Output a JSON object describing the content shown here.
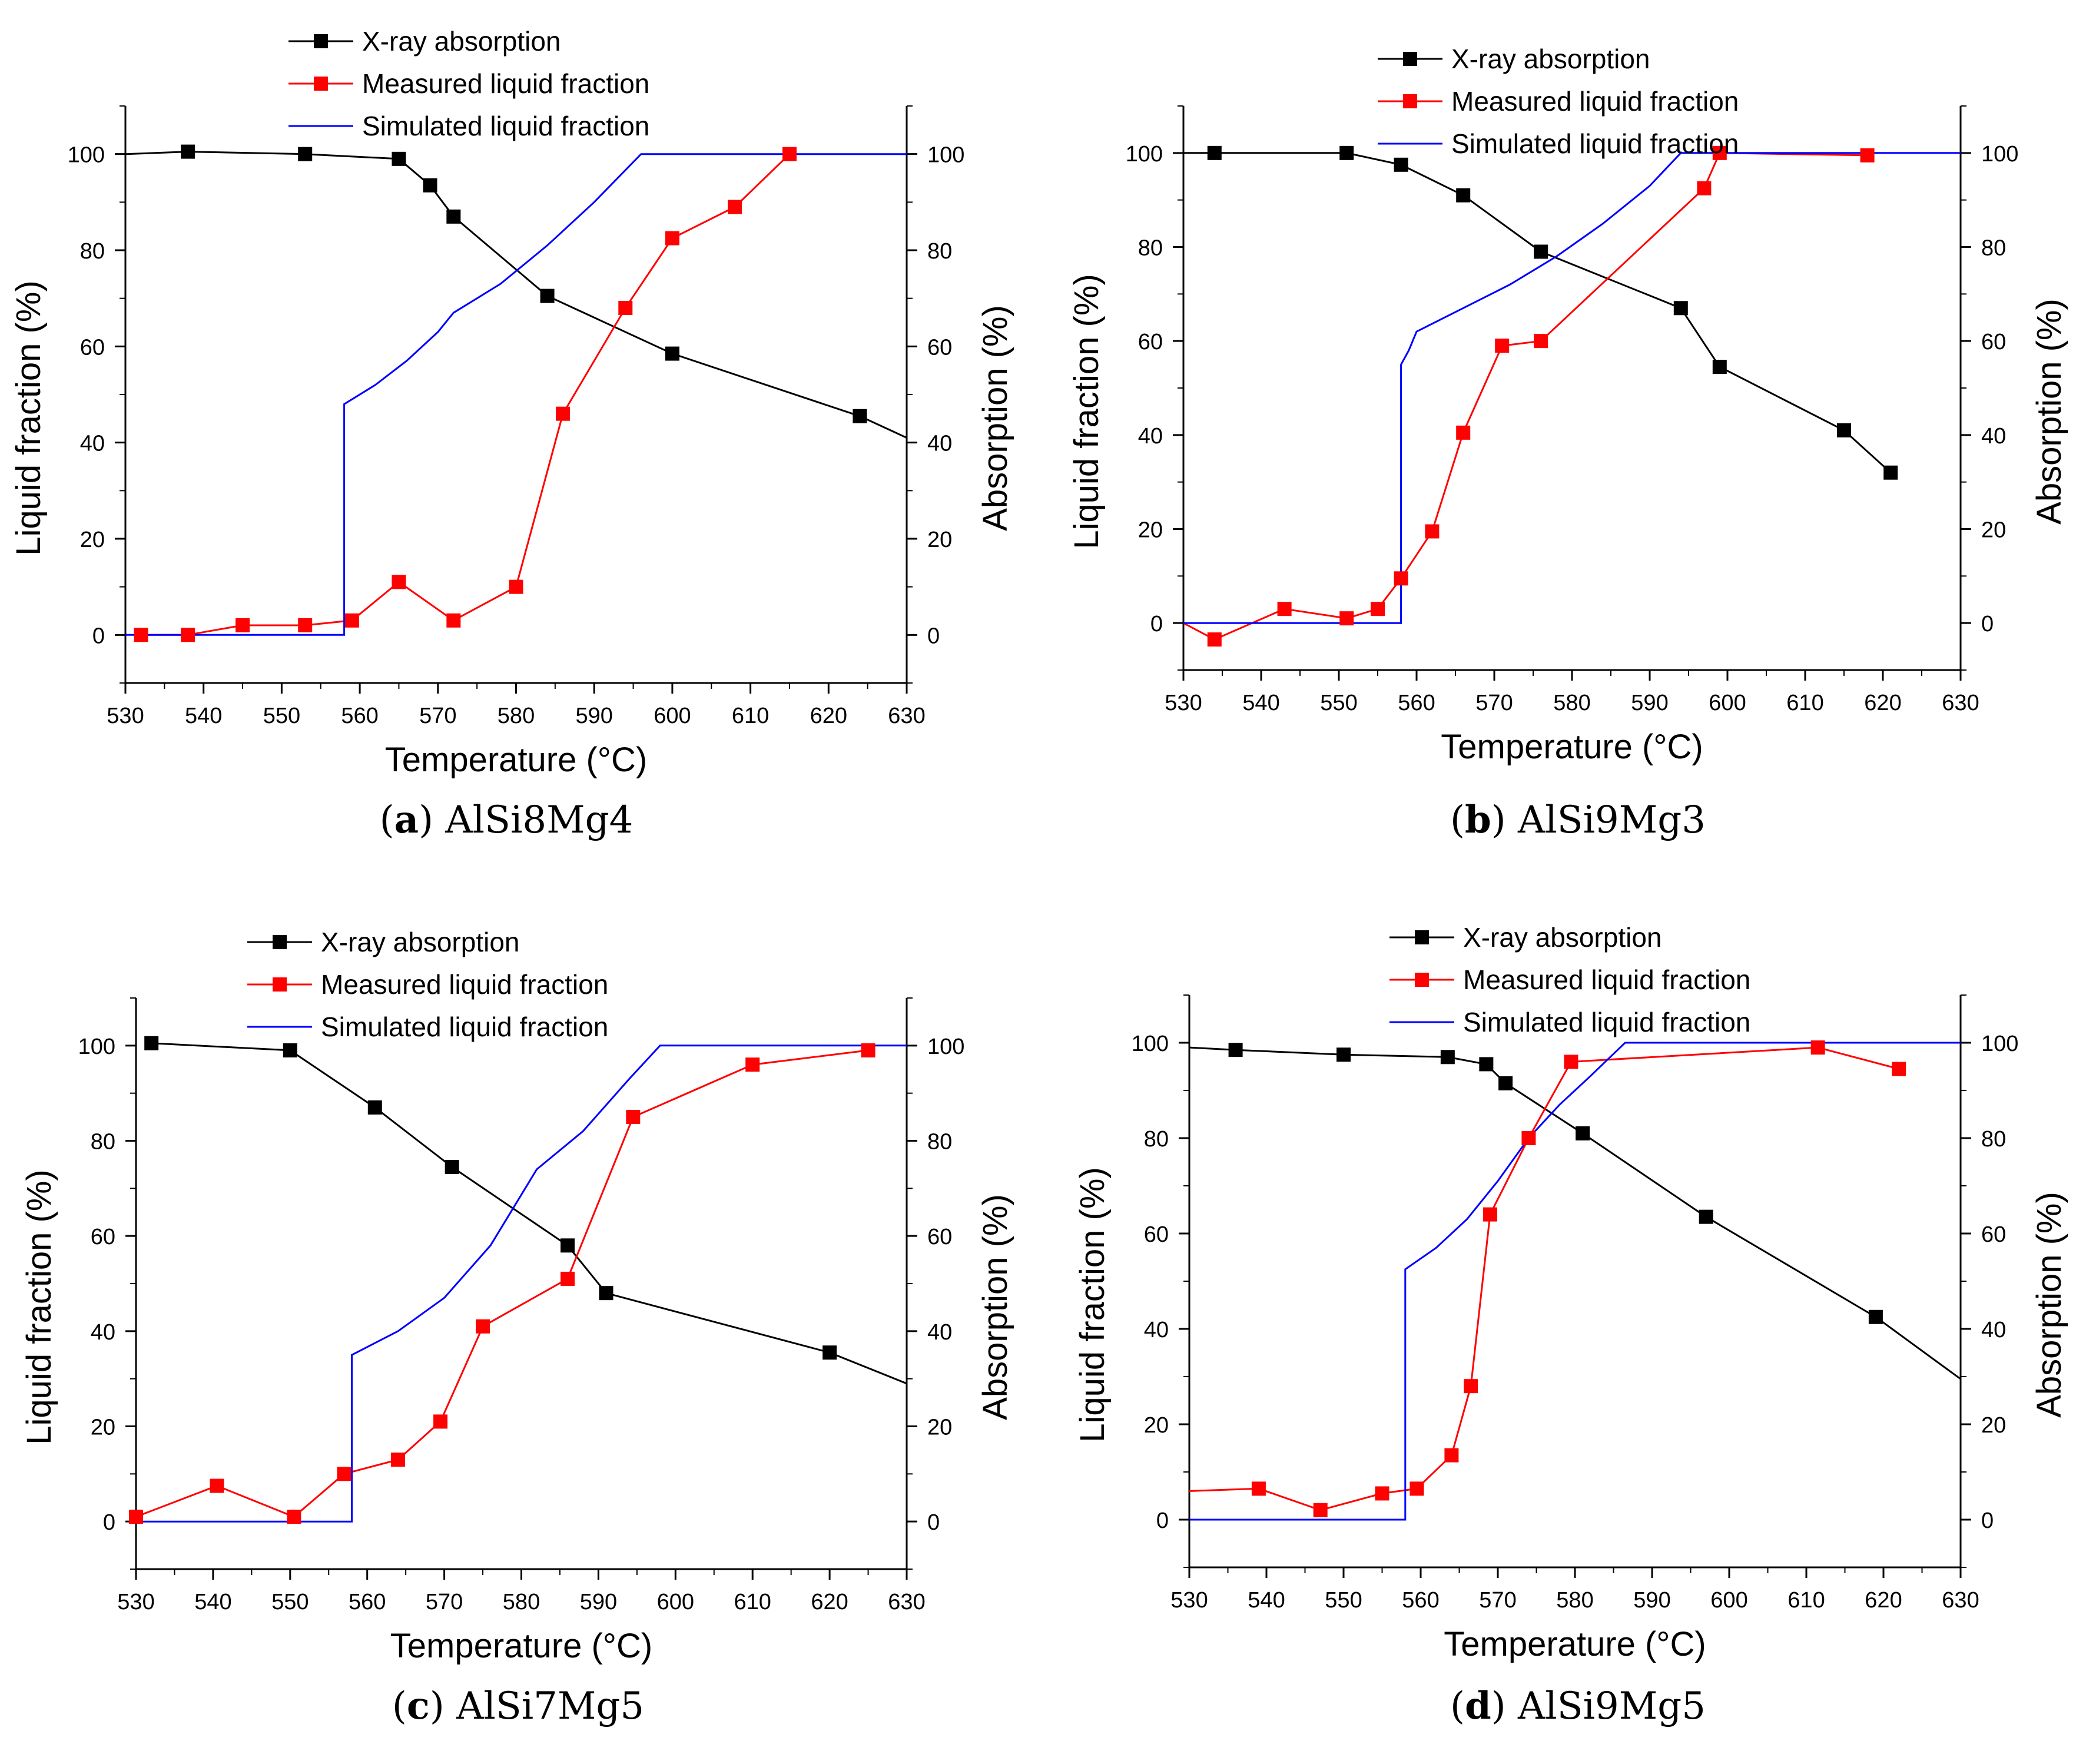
{
  "figure": {
    "captions": [
      {
        "letter": "a",
        "open": "(",
        "close": ")",
        "alloy": "AlSi8Mg4"
      },
      {
        "letter": "b",
        "open": "(",
        "close": ")",
        "alloy": "AlSi9Mg3"
      },
      {
        "letter": "c",
        "open": "(",
        "close": ")",
        "alloy": "AlSi7Mg5"
      },
      {
        "letter": "d",
        "open": "(",
        "close": ")",
        "alloy": "AlSi9Mg5"
      }
    ]
  },
  "colors": {
    "xray": "#000000",
    "measured": "#ff0000",
    "simulated": "#0000ff",
    "axis": "#000000"
  },
  "chart_data": [
    {
      "type": "line",
      "title": "AlSi8Mg4",
      "xlabel": "Temperature (°C)",
      "ylabel": "Liquid fraction (%)",
      "y2label": "Absorption (%)",
      "xlim": [
        530,
        630
      ],
      "ylim": [
        -10,
        110
      ],
      "xticks": [
        530,
        540,
        550,
        560,
        570,
        580,
        590,
        600,
        610,
        620,
        630
      ],
      "yticks": [
        0,
        20,
        40,
        60,
        80,
        100
      ],
      "legend": [
        "X-ray absorption",
        "Measured liquid fraction",
        "Simulated liquid fraction"
      ],
      "series": [
        {
          "name": "X-ray absorption",
          "axis": "right",
          "markers": true,
          "x": [
            530,
            538,
            553,
            565,
            569,
            572,
            584,
            600,
            624,
            630
          ],
          "y": [
            100,
            100.5,
            100,
            99,
            93.5,
            87,
            70.5,
            58.5,
            45.5,
            41
          ],
          "marker_x": [
            538,
            553,
            565,
            569,
            572,
            584,
            600,
            624
          ],
          "marker_y": [
            100.5,
            100,
            99,
            93.5,
            87,
            70.5,
            58.5,
            45.5
          ]
        },
        {
          "name": "Measured liquid fraction",
          "axis": "left",
          "markers": true,
          "x": [
            532,
            538,
            545,
            553,
            559,
            565,
            572,
            580,
            586,
            594,
            600,
            608,
            615
          ],
          "y": [
            0,
            0,
            2,
            2,
            3,
            11,
            3,
            10,
            46,
            68,
            82.5,
            89,
            100
          ]
        },
        {
          "name": "Simulated liquid fraction",
          "axis": "left",
          "markers": false,
          "x": [
            530,
            558,
            558,
            562,
            566,
            570,
            572,
            578,
            584,
            590,
            596,
            630
          ],
          "y": [
            0,
            0,
            48,
            52,
            57,
            63,
            67,
            73,
            81,
            90,
            100,
            100
          ]
        }
      ]
    },
    {
      "type": "line",
      "title": "AlSi9Mg3",
      "xlabel": "Temperature (°C)",
      "ylabel": "Liquid fraction (%)",
      "y2label": "Absorption (%)",
      "xlim": [
        530,
        630
      ],
      "ylim": [
        -10,
        110
      ],
      "xticks": [
        530,
        540,
        550,
        560,
        570,
        580,
        590,
        600,
        610,
        620,
        630
      ],
      "yticks": [
        0,
        20,
        40,
        60,
        80,
        100
      ],
      "legend": [
        "X-ray absorption",
        "Measured liquid fraction",
        "Simulated liquid fraction"
      ],
      "series": [
        {
          "name": "X-ray absorption",
          "axis": "right",
          "markers": true,
          "x": [
            530,
            534,
            551,
            558,
            566,
            576,
            594,
            599,
            615,
            621
          ],
          "y": [
            100,
            100,
            100,
            97.5,
            91,
            79,
            67,
            54.5,
            41,
            32
          ],
          "marker_x": [
            534,
            551,
            558,
            566,
            576,
            594,
            599,
            615,
            621
          ],
          "marker_y": [
            100,
            100,
            97.5,
            91,
            79,
            67,
            54.5,
            41,
            32
          ]
        },
        {
          "name": "Measured liquid fraction",
          "axis": "left",
          "markers": true,
          "x": [
            530,
            534,
            543,
            551,
            555,
            558,
            562,
            566,
            571,
            576,
            597,
            599,
            618
          ],
          "y": [
            0,
            -3.5,
            3,
            1,
            3,
            9.5,
            19.5,
            40.5,
            59,
            60,
            92.5,
            100,
            99.5
          ],
          "marker_x": [
            534,
            543,
            551,
            555,
            558,
            562,
            566,
            571,
            576,
            597,
            599,
            618
          ],
          "marker_y": [
            -3.5,
            3,
            1,
            3,
            9.5,
            19.5,
            40.5,
            59,
            60,
            92.5,
            100,
            99.5
          ]
        },
        {
          "name": "Simulated liquid fraction",
          "axis": "left",
          "markers": false,
          "x": [
            530,
            558,
            558,
            559,
            560,
            566,
            572,
            578,
            584,
            590,
            594,
            630
          ],
          "y": [
            0,
            0,
            55,
            58,
            62,
            67,
            72,
            78,
            85,
            93,
            100,
            100
          ]
        }
      ]
    },
    {
      "type": "line",
      "title": "AlSi7Mg5",
      "xlabel": "Temperature (°C)",
      "ylabel": "Liquid fraction (%)",
      "y2label": "Absorption (%)",
      "xlim": [
        530,
        630
      ],
      "ylim": [
        -10,
        110
      ],
      "xticks": [
        530,
        540,
        550,
        560,
        570,
        580,
        590,
        600,
        610,
        620,
        630
      ],
      "yticks": [
        0,
        20,
        40,
        60,
        80,
        100
      ],
      "legend": [
        "X-ray absorption",
        "Measured liquid fraction",
        "Simulated liquid fraction"
      ],
      "series": [
        {
          "name": "X-ray absorption",
          "axis": "right",
          "markers": true,
          "x": [
            532,
            550,
            561,
            571,
            586,
            591,
            620,
            630
          ],
          "y": [
            100.5,
            99,
            87,
            74.5,
            58,
            48,
            35.5,
            29
          ],
          "marker_x": [
            532,
            550,
            561,
            571,
            586,
            591,
            620
          ],
          "marker_y": [
            100.5,
            99,
            87,
            74.5,
            58,
            48,
            35.5
          ]
        },
        {
          "name": "Measured liquid fraction",
          "axis": "left",
          "markers": true,
          "x": [
            530,
            540.5,
            550.5,
            557,
            564,
            569.5,
            575,
            586,
            594.5,
            610,
            625
          ],
          "y": [
            1,
            7.5,
            1,
            10,
            13,
            21,
            41,
            51,
            85,
            96,
            99
          ]
        },
        {
          "name": "Simulated liquid fraction",
          "axis": "left",
          "markers": false,
          "x": [
            530,
            558,
            558,
            564,
            570,
            576,
            582,
            588,
            594,
            598,
            630
          ],
          "y": [
            0,
            0,
            35,
            40,
            47,
            58,
            74,
            82,
            93,
            100,
            100
          ]
        }
      ]
    },
    {
      "type": "line",
      "title": "AlSi9Mg5",
      "xlabel": "Temperature (°C)",
      "ylabel": "Liquid fraction (%)",
      "y2label": "Absorption (%)",
      "xlim": [
        530,
        630
      ],
      "ylim": [
        -10,
        110
      ],
      "xticks": [
        530,
        540,
        550,
        560,
        570,
        580,
        590,
        600,
        610,
        620,
        630
      ],
      "yticks": [
        0,
        20,
        40,
        60,
        80,
        100
      ],
      "legend": [
        "X-ray absorption",
        "Measured liquid  fraction",
        "Simulated liquid fraction"
      ],
      "series": [
        {
          "name": "X-ray absorption",
          "axis": "right",
          "markers": true,
          "x": [
            530,
            536,
            550,
            563.5,
            568.5,
            571,
            581,
            597,
            619,
            630
          ],
          "y": [
            99,
            98.5,
            97.5,
            97,
            95.5,
            91.5,
            81,
            63.5,
            42.5,
            29.5
          ],
          "marker_x": [
            536,
            550,
            563.5,
            568.5,
            571,
            581,
            597,
            619
          ],
          "marker_y": [
            98.5,
            97.5,
            97,
            95.5,
            91.5,
            81,
            63.5,
            42.5
          ]
        },
        {
          "name": "Measured liquid  fraction",
          "axis": "left",
          "markers": true,
          "x": [
            530,
            539,
            547,
            555,
            559.5,
            564,
            566.5,
            569,
            574,
            579.5,
            611.5,
            622
          ],
          "y": [
            6,
            6.5,
            2,
            5.5,
            6.5,
            13.5,
            28,
            64,
            80,
            96,
            99,
            94.5
          ],
          "marker_x": [
            539,
            547,
            555,
            559.5,
            564,
            566.5,
            569,
            574,
            579.5,
            611.5,
            622
          ],
          "marker_y": [
            6.5,
            2,
            5.5,
            6.5,
            13.5,
            28,
            64,
            80,
            96,
            99,
            94.5
          ]
        },
        {
          "name": "Simulated liquid fraction",
          "axis": "left",
          "markers": false,
          "x": [
            530,
            558,
            558,
            562,
            566,
            570,
            574,
            578,
            582,
            586.5,
            630
          ],
          "y": [
            0,
            0,
            52.5,
            57,
            63,
            71,
            80,
            87,
            93,
            100,
            100
          ]
        }
      ]
    }
  ]
}
